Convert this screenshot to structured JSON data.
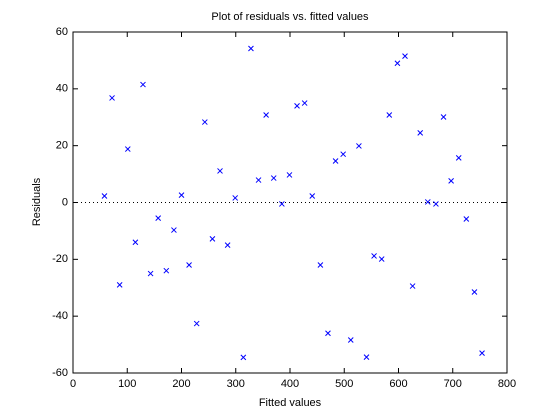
{
  "chart_data": {
    "type": "scatter",
    "title": "Plot of residuals vs. fitted values",
    "xlabel": "Fitted values",
    "ylabel": "Residuals",
    "x": [
      58,
      72,
      86,
      101,
      115,
      129,
      143,
      157,
      172,
      186,
      200,
      214,
      228,
      243,
      257,
      271,
      285,
      299,
      314,
      328,
      342,
      356,
      370,
      385,
      399,
      413,
      427,
      441,
      456,
      470,
      484,
      498,
      512,
      527,
      541,
      555,
      569,
      583,
      598,
      612,
      626,
      640,
      654,
      669,
      683,
      697,
      711,
      725,
      740,
      754
    ],
    "y": [
      2.3,
      36.8,
      -29,
      18.8,
      -14,
      41.5,
      -25,
      -5.5,
      -24,
      -9.7,
      2.6,
      -22,
      -42.6,
      28.3,
      -12.8,
      11.1,
      -15,
      1.6,
      -54.5,
      54.2,
      7.9,
      30.8,
      8.6,
      -0.5,
      9.7,
      34,
      35,
      2.3,
      -22,
      -46,
      14.6,
      17,
      -48.4,
      19.9,
      -54.4,
      -18.8,
      -19.9,
      30.8,
      49,
      51.5,
      -29.4,
      24.5,
      0.2,
      -0.5,
      30.1,
      7.6,
      15.7,
      -5.8,
      -31.5,
      -53
    ],
    "color": "#0000ff",
    "reference_line": 0,
    "xlim": [
      0,
      800
    ],
    "xticks": [
      0,
      100,
      200,
      300,
      400,
      500,
      600,
      700,
      800
    ],
    "ylim": [
      -60,
      60
    ],
    "yticks": [
      -60,
      -40,
      -20,
      0,
      20,
      40,
      60
    ]
  }
}
